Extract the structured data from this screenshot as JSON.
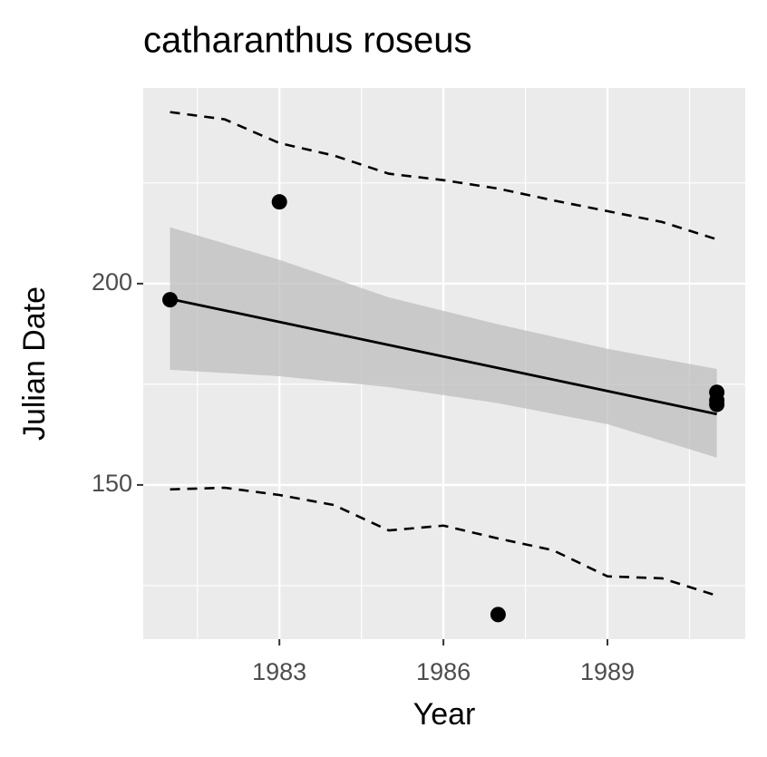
{
  "chart_data": {
    "type": "scatter",
    "title": "catharanthus roseus",
    "x_label": "Year",
    "y_label": "Julian Date",
    "xlim": [
      1980.51,
      1991.52
    ],
    "ylim": [
      111.7,
      248.6
    ],
    "xticks": [
      1983,
      1986,
      1989
    ],
    "yticks": [
      150,
      200
    ],
    "grid": true,
    "points": {
      "x": [
        1981,
        1983,
        1987,
        1991,
        1991,
        1991
      ],
      "y": [
        196,
        220.3,
        117.8,
        173,
        171,
        170
      ],
      "color": "#000000"
    },
    "fit": {
      "x": [
        1981,
        1991
      ],
      "y": [
        196.2,
        167.6
      ],
      "color": "#000000"
    },
    "band": {
      "x": [
        1981,
        1983,
        1985,
        1987,
        1989,
        1991
      ],
      "lower": [
        178.6,
        177,
        174.3,
        170.3,
        165.1,
        156.8
      ],
      "upper": [
        214,
        205.9,
        196.6,
        189.9,
        183.8,
        178.8
      ],
      "color": "#bdbdbd"
    },
    "prediction_upper": {
      "x": [
        1981,
        1982,
        1983,
        1984,
        1985,
        1986,
        1987,
        1988,
        1989,
        1990,
        1991
      ],
      "y": [
        242.6,
        240.8,
        234.9,
        231.8,
        227.3,
        225.7,
        223.6,
        220.7,
        218,
        215.3,
        211
      ]
    },
    "prediction_lower": {
      "x": [
        1981,
        1982,
        1983,
        1984,
        1985,
        1986,
        1987,
        1988,
        1989,
        1990,
        1991
      ],
      "y": [
        148.9,
        149.3,
        147.5,
        145,
        138.7,
        139.9,
        136.7,
        133.8,
        127.3,
        126.8,
        122.5
      ]
    }
  }
}
